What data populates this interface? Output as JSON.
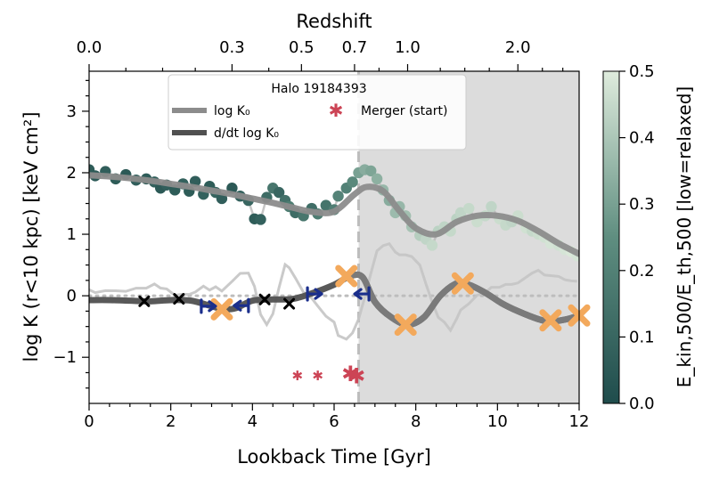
{
  "chart_data": {
    "type": "scatter",
    "title": "Redshift",
    "legend_title": "Halo 19184393",
    "xlabel": "Lookback Time [Gyr]",
    "ylabel": "log K (r<10 kpc) [keV cm²]",
    "xlim": [
      0,
      12
    ],
    "ylim": [
      -1.75,
      3.65
    ],
    "x_ticks": [
      "0",
      "2",
      "4",
      "6",
      "8",
      "10",
      "12"
    ],
    "y_ticks": [
      "−1",
      "0",
      "1",
      "2",
      "3"
    ],
    "redshift_axis": {
      "tick_labels": [
        "0.0",
        "0.3",
        "0.5",
        "0.7",
        "1.0",
        "2.0"
      ],
      "tick_lookback_gyr": [
        0.0,
        3.5,
        5.2,
        6.5,
        7.8,
        10.5
      ]
    },
    "colorbar": {
      "label": "E_kin,500/E_th,500 [low=relaxed]",
      "range": [
        0.0,
        0.5
      ],
      "tick_labels": [
        "0.0",
        "0.1",
        "0.2",
        "0.3",
        "0.4",
        "0.5"
      ],
      "color_low": "#1f4c4c",
      "color_high": "#dfecdd"
    },
    "shaded_region": {
      "x_start": 6.6,
      "x_end": 12.0,
      "color": "#dcdcdc"
    },
    "merger_line_x": 6.6,
    "zero_line_y": 0,
    "series": [
      {
        "name": "log K₀",
        "role": "raw_k0",
        "points": [
          [
            0.0,
            2.05,
            0.06
          ],
          [
            0.15,
            1.95,
            0.05
          ],
          [
            0.4,
            2.02,
            0.07
          ],
          [
            0.65,
            1.9,
            0.06
          ],
          [
            0.9,
            1.97,
            0.05
          ],
          [
            1.15,
            1.88,
            0.07
          ],
          [
            1.4,
            1.9,
            0.06
          ],
          [
            1.6,
            1.85,
            0.08
          ],
          [
            1.75,
            1.75,
            0.05
          ],
          [
            1.9,
            1.8,
            0.07
          ],
          [
            2.1,
            1.72,
            0.06
          ],
          [
            2.3,
            1.82,
            0.08
          ],
          [
            2.45,
            1.7,
            0.06
          ],
          [
            2.6,
            1.86,
            0.07
          ],
          [
            2.8,
            1.65,
            0.08
          ],
          [
            2.95,
            1.78,
            0.06
          ],
          [
            3.1,
            1.68,
            0.09
          ],
          [
            3.25,
            1.58,
            0.07
          ],
          [
            3.5,
            1.75,
            0.05
          ],
          [
            3.7,
            1.62,
            0.08
          ],
          [
            3.9,
            1.55,
            0.1
          ],
          [
            4.05,
            1.25,
            0.06
          ],
          [
            4.2,
            1.24,
            0.08
          ],
          [
            4.35,
            1.6,
            0.12
          ],
          [
            4.5,
            1.75,
            0.16
          ],
          [
            4.65,
            1.68,
            0.1
          ],
          [
            4.8,
            1.55,
            0.14
          ],
          [
            4.9,
            1.45,
            0.18
          ],
          [
            5.05,
            1.35,
            0.12
          ],
          [
            5.25,
            1.3,
            0.16
          ],
          [
            5.45,
            1.42,
            0.13
          ],
          [
            5.6,
            1.33,
            0.18
          ],
          [
            5.8,
            1.47,
            0.15
          ],
          [
            6.0,
            1.4,
            0.19
          ],
          [
            6.1,
            1.62,
            0.21
          ],
          [
            6.3,
            1.75,
            0.2
          ],
          [
            6.45,
            1.85,
            0.23
          ],
          [
            6.6,
            2.0,
            0.3
          ],
          [
            6.75,
            2.05,
            0.33
          ],
          [
            6.9,
            2.03,
            0.31
          ],
          [
            7.05,
            1.9,
            0.34
          ],
          [
            7.2,
            1.72,
            0.36
          ],
          [
            7.35,
            1.55,
            0.33
          ],
          [
            7.5,
            1.35,
            0.37
          ],
          [
            7.6,
            1.45,
            0.36
          ],
          [
            7.75,
            1.3,
            0.38
          ],
          [
            7.9,
            1.12,
            0.39
          ],
          [
            8.1,
            0.98,
            0.42
          ],
          [
            8.25,
            0.92,
            0.44
          ],
          [
            8.4,
            0.82,
            0.45
          ],
          [
            8.55,
            1.05,
            0.43
          ],
          [
            8.7,
            1.12,
            0.44
          ],
          [
            8.85,
            1.05,
            0.45
          ],
          [
            9.0,
            1.25,
            0.43
          ],
          [
            9.1,
            1.35,
            0.44
          ],
          [
            9.3,
            1.42,
            0.45
          ],
          [
            9.5,
            1.2,
            0.46
          ],
          [
            9.7,
            1.3,
            0.45
          ],
          [
            9.85,
            1.45,
            0.44
          ],
          [
            10.05,
            1.25,
            0.46
          ],
          [
            10.2,
            1.15,
            0.45
          ],
          [
            10.35,
            1.2,
            0.44
          ],
          [
            10.5,
            1.3,
            0.46
          ],
          [
            10.7,
            1.1,
            0.47
          ],
          [
            10.85,
            1.05,
            0.45
          ],
          [
            11.0,
            1.0,
            0.46
          ],
          [
            11.15,
            0.95,
            0.47
          ],
          [
            11.3,
            0.85,
            0.48
          ],
          [
            11.5,
            0.82,
            0.47
          ],
          [
            11.65,
            0.75,
            0.48
          ],
          [
            11.8,
            0.72,
            0.49
          ],
          [
            11.95,
            0.65,
            0.48
          ]
        ]
      },
      {
        "name": "log K₀",
        "role": "smooth_k0",
        "color": "#8c8c8c",
        "x": [
          0,
          0.5,
          1,
          1.5,
          2,
          2.5,
          3,
          3.5,
          4,
          4.5,
          5,
          5.5,
          6,
          6.5,
          6.8,
          7.2,
          7.6,
          8,
          8.5,
          9,
          9.5,
          10,
          10.5,
          11,
          11.5,
          12
        ],
        "y": [
          1.96,
          1.94,
          1.91,
          1.87,
          1.82,
          1.77,
          1.71,
          1.65,
          1.58,
          1.51,
          1.43,
          1.36,
          1.37,
          1.65,
          1.77,
          1.7,
          1.38,
          1.1,
          1.0,
          1.2,
          1.3,
          1.3,
          1.22,
          1.05,
          0.85,
          0.68
        ]
      },
      {
        "name": "d/dt log K₀",
        "role": "derivative",
        "color": "#505050",
        "x": [
          0,
          0.5,
          1,
          1.5,
          2,
          2.5,
          3,
          3.3,
          3.6,
          4,
          4.5,
          5,
          5.5,
          6,
          6.4,
          6.7,
          7,
          7.4,
          7.8,
          8.2,
          8.6,
          9.0,
          9.3,
          9.7,
          10.1,
          10.5,
          11,
          11.3,
          11.7,
          12
        ],
        "y": [
          -0.07,
          -0.07,
          -0.08,
          -0.09,
          -0.07,
          -0.08,
          -0.17,
          -0.22,
          -0.2,
          -0.08,
          -0.06,
          -0.05,
          0.05,
          0.18,
          0.32,
          0.3,
          -0.1,
          -0.35,
          -0.47,
          -0.35,
          0.0,
          0.2,
          0.18,
          0.05,
          -0.12,
          -0.25,
          -0.38,
          -0.42,
          -0.38,
          -0.32
        ]
      },
      {
        "name": "Merger (start)",
        "role": "merger",
        "color": "#cc4455",
        "points": [
          [
            5.1,
            -1.3,
            "small"
          ],
          [
            5.6,
            -1.3,
            "small"
          ],
          [
            6.4,
            -1.27,
            "large"
          ],
          [
            6.55,
            -1.3,
            "large"
          ]
        ]
      }
    ],
    "markers": {
      "black_x": [
        [
          1.35,
          -0.09
        ],
        [
          2.2,
          -0.05
        ],
        [
          4.3,
          -0.06
        ],
        [
          4.9,
          -0.13
        ]
      ],
      "orange_x": [
        [
          3.25,
          -0.22
        ],
        [
          6.3,
          0.32
        ],
        [
          7.75,
          -0.47
        ],
        [
          9.15,
          0.2
        ],
        [
          11.3,
          -0.4
        ],
        [
          12.0,
          -0.32
        ]
      ],
      "blue_right": [
        [
          2.9,
          -0.17
        ],
        [
          5.5,
          0.03
        ]
      ],
      "blue_left": [
        [
          3.75,
          -0.16
        ],
        [
          6.7,
          0.03
        ]
      ]
    },
    "legend": {
      "items": [
        {
          "label": "log K₀",
          "kind": "line",
          "color": "#8c8c8c"
        },
        {
          "label": "d/dt log K₀",
          "kind": "line",
          "color": "#505050"
        },
        {
          "label": "Merger (start)",
          "kind": "star",
          "color": "#cc4455"
        }
      ],
      "placement": "top-center"
    },
    "grid": false
  }
}
